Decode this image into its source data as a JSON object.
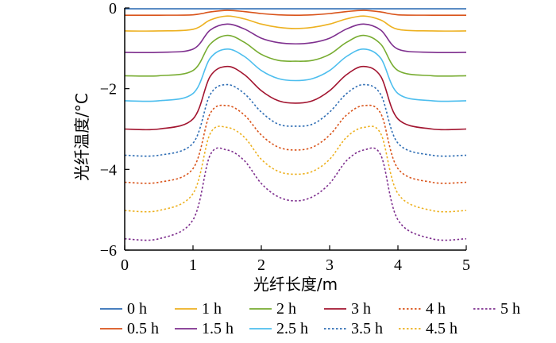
{
  "chart_data": {
    "type": "line",
    "title": "",
    "xlabel": "光纤长度/m",
    "ylabel": "光纤温度/°C",
    "xlim": [
      0,
      5
    ],
    "ylim": [
      -6,
      0
    ],
    "x_ticks": [
      "0",
      "1",
      "2",
      "3",
      "4",
      "5"
    ],
    "y_ticks": [
      "0",
      "−2",
      "−4",
      "−6"
    ],
    "y_tick_values": [
      0,
      -2,
      -4,
      -6
    ],
    "grid": false,
    "legend_placement": "bottom",
    "x": [
      0,
      0.5,
      1.0,
      1.25,
      1.5,
      1.75,
      2.0,
      2.25,
      2.5,
      2.75,
      3.0,
      3.25,
      3.5,
      3.75,
      4.0,
      4.5,
      5.0
    ],
    "series": [
      {
        "name": "0 h",
        "color": "#2E6DB4",
        "dash": false,
        "values": [
          -0.02,
          -0.02,
          -0.02,
          -0.02,
          -0.02,
          -0.02,
          -0.02,
          -0.02,
          -0.02,
          -0.02,
          -0.02,
          -0.02,
          -0.02,
          -0.02,
          -0.02,
          -0.02,
          -0.02
        ]
      },
      {
        "name": "0.5 h",
        "color": "#D95319",
        "dash": false,
        "values": [
          -0.18,
          -0.18,
          -0.17,
          -0.1,
          -0.06,
          -0.09,
          -0.14,
          -0.17,
          -0.18,
          -0.17,
          -0.14,
          -0.09,
          -0.06,
          -0.1,
          -0.17,
          -0.18,
          -0.18
        ]
      },
      {
        "name": "1 h",
        "color": "#EDB120",
        "dash": false,
        "values": [
          -0.57,
          -0.57,
          -0.53,
          -0.3,
          -0.2,
          -0.27,
          -0.4,
          -0.48,
          -0.51,
          -0.48,
          -0.4,
          -0.27,
          -0.2,
          -0.3,
          -0.53,
          -0.57,
          -0.57
        ]
      },
      {
        "name": "1.5 h",
        "color": "#7E2F8E",
        "dash": false,
        "values": [
          -1.1,
          -1.1,
          -1.02,
          -0.55,
          -0.4,
          -0.52,
          -0.75,
          -0.86,
          -0.89,
          -0.86,
          -0.75,
          -0.52,
          -0.4,
          -0.55,
          -1.02,
          -1.1,
          -1.1
        ]
      },
      {
        "name": "2 h",
        "color": "#77AC30",
        "dash": false,
        "values": [
          -1.68,
          -1.68,
          -1.55,
          -0.9,
          -0.68,
          -0.85,
          -1.15,
          -1.3,
          -1.32,
          -1.3,
          -1.15,
          -0.85,
          -0.68,
          -0.9,
          -1.55,
          -1.68,
          -1.68
        ]
      },
      {
        "name": "2.5 h",
        "color": "#4DBEEE",
        "dash": false,
        "values": [
          -2.3,
          -2.3,
          -2.12,
          -1.25,
          -1.02,
          -1.2,
          -1.55,
          -1.75,
          -1.8,
          -1.75,
          -1.55,
          -1.2,
          -1.02,
          -1.25,
          -2.12,
          -2.3,
          -2.3
        ]
      },
      {
        "name": "3 h",
        "color": "#A2142F",
        "dash": false,
        "values": [
          -3.0,
          -3.0,
          -2.75,
          -1.7,
          -1.45,
          -1.65,
          -2.05,
          -2.3,
          -2.36,
          -2.3,
          -2.05,
          -1.65,
          -1.45,
          -1.7,
          -2.75,
          -3.0,
          -3.0
        ]
      },
      {
        "name": "3.5 h",
        "color": "#2E6DB4",
        "dash": true,
        "values": [
          -3.65,
          -3.65,
          -3.35,
          -2.15,
          -1.9,
          -2.12,
          -2.58,
          -2.88,
          -2.93,
          -2.88,
          -2.58,
          -2.12,
          -1.9,
          -2.15,
          -3.35,
          -3.65,
          -3.65
        ]
      },
      {
        "name": "4 h",
        "color": "#D95319",
        "dash": true,
        "values": [
          -4.32,
          -4.32,
          -3.98,
          -2.62,
          -2.42,
          -2.65,
          -3.15,
          -3.45,
          -3.52,
          -3.45,
          -3.15,
          -2.65,
          -2.42,
          -2.62,
          -3.98,
          -4.32,
          -4.32
        ]
      },
      {
        "name": "4.5 h",
        "color": "#EDB120",
        "dash": true,
        "values": [
          -5.02,
          -5.02,
          -4.6,
          -3.12,
          -2.96,
          -3.2,
          -3.75,
          -4.05,
          -4.12,
          -4.05,
          -3.75,
          -3.2,
          -2.96,
          -3.12,
          -4.6,
          -5.02,
          -5.02
        ]
      },
      {
        "name": "5 h",
        "color": "#7E2F8E",
        "dash": true,
        "values": [
          -5.72,
          -5.72,
          -5.25,
          -3.65,
          -3.52,
          -3.78,
          -4.35,
          -4.68,
          -4.78,
          -4.68,
          -4.35,
          -3.78,
          -3.52,
          -3.65,
          -5.25,
          -5.72,
          -5.72
        ]
      }
    ],
    "legend_rows": [
      [
        "0 h",
        "1 h",
        "2 h",
        "3 h",
        "4 h",
        "5 h"
      ],
      [
        "0.5 h",
        "1.5 h",
        "2.5 h",
        "3.5 h",
        "4.5 h"
      ]
    ]
  }
}
